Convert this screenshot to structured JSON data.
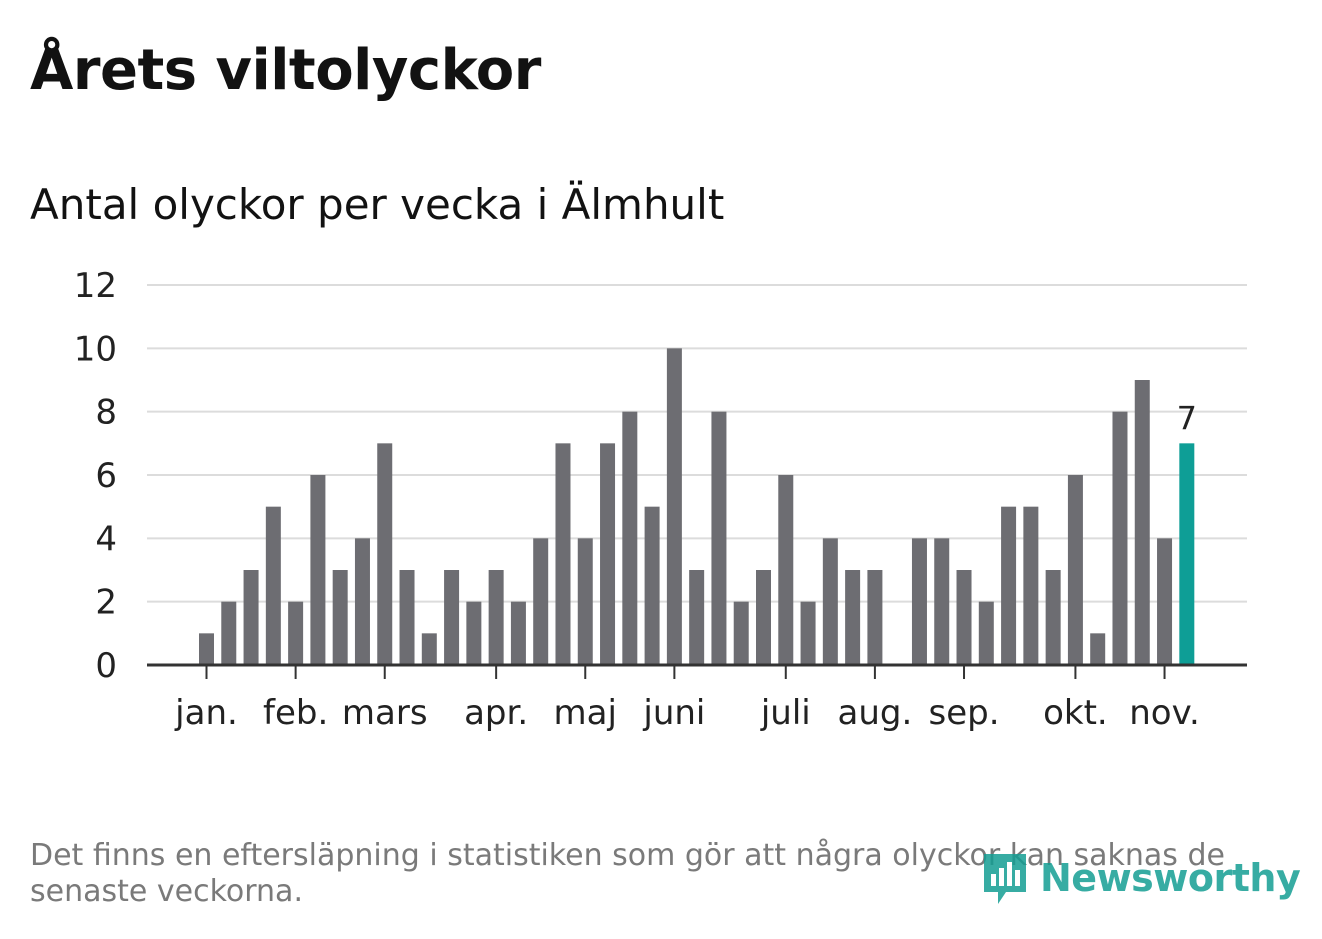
{
  "title": "Årets viltolyckor",
  "subtitle": "Antal olyckor per vecka i Älmhult",
  "note": "Det finns en eftersläpning i statistiken som gör att några olyckor kan saknas de senaste veckorna.",
  "logo": {
    "text": "Newsworthy",
    "icon": "bar-chart-speech-bubble-icon"
  },
  "colors": {
    "bar": "#6d6d72",
    "highlight": "#0e9e96",
    "grid": "#dcdcdc",
    "axis": "#333333",
    "text": "#121212",
    "note": "#7a7a7a"
  },
  "chart_data": {
    "type": "bar",
    "ylim": [
      0,
      12
    ],
    "yticks": [
      0,
      2,
      4,
      6,
      8,
      10,
      12
    ],
    "grid": true,
    "values": [
      1,
      2,
      3,
      5,
      2,
      6,
      3,
      4,
      7,
      3,
      1,
      3,
      2,
      3,
      2,
      4,
      7,
      4,
      7,
      8,
      5,
      10,
      3,
      8,
      2,
      3,
      6,
      2,
      4,
      3,
      3,
      0,
      4,
      4,
      3,
      2,
      5,
      5,
      3,
      6,
      1,
      8,
      9,
      4,
      7
    ],
    "highlight_index": 44,
    "highlight_label": "7",
    "months": [
      {
        "label": "jan.",
        "week": 1
      },
      {
        "label": "feb.",
        "week": 5
      },
      {
        "label": "mars",
        "week": 9
      },
      {
        "label": "apr.",
        "week": 14
      },
      {
        "label": "maj",
        "week": 18
      },
      {
        "label": "juni",
        "week": 22
      },
      {
        "label": "juli",
        "week": 27
      },
      {
        "label": "aug.",
        "week": 31
      },
      {
        "label": "sep.",
        "week": 35
      },
      {
        "label": "okt.",
        "week": 40
      },
      {
        "label": "nov.",
        "week": 44
      }
    ]
  }
}
